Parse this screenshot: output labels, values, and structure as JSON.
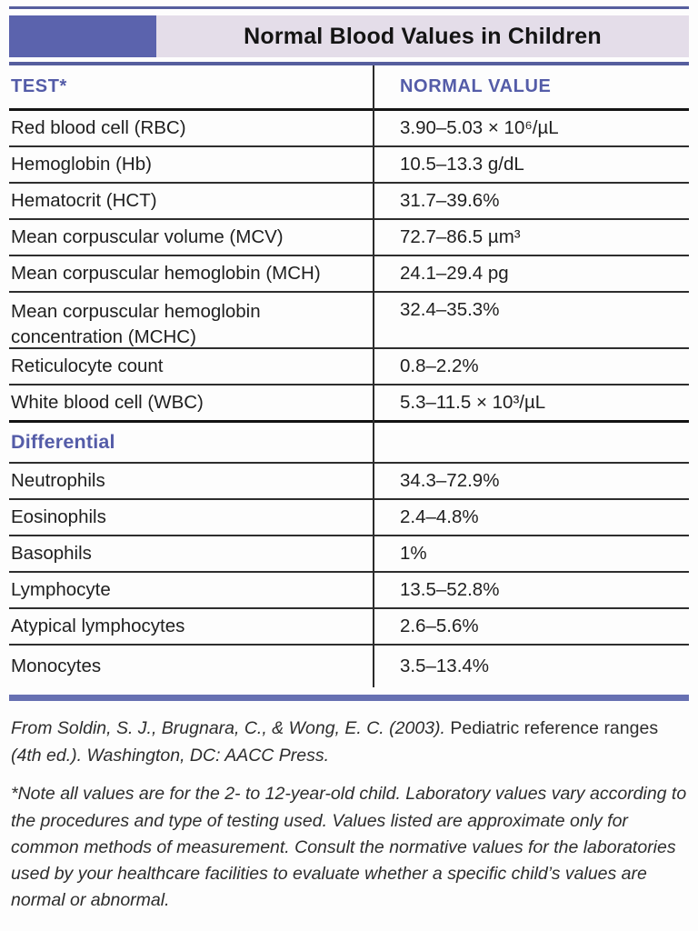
{
  "header": {
    "title": "Normal Blood Values in Children"
  },
  "colors": {
    "accent_purple": "#5b63ad",
    "rule_purple": "#565e9e",
    "bottom_rule_purple": "#6770b2",
    "band_lavender": "#e4dde9",
    "heading_text_purple": "#545ca8",
    "body_text": "#1f1f1f"
  },
  "table": {
    "columns": {
      "test": "TEST*",
      "value": "NORMAL VALUE"
    },
    "rows": [
      {
        "test": "Red blood cell (RBC)",
        "value": "3.90–5.03 × 10⁶/µL"
      },
      {
        "test": "Hemoglobin (Hb)",
        "value": "10.5–13.3 g/dL"
      },
      {
        "test": "Hematocrit (HCT)",
        "value": "31.7–39.6%"
      },
      {
        "test": "Mean corpuscular volume (MCV)",
        "value": "72.7–86.5 µm³"
      },
      {
        "test": "Mean corpuscular hemoglobin (MCH)",
        "value": "24.1–29.4 pg"
      },
      {
        "test": "Mean corpuscular hemoglobin concentration (MCHC)",
        "value": "32.4–35.3%"
      },
      {
        "test": "Reticulocyte count",
        "value": "0.8–2.2%"
      },
      {
        "test": "White blood cell (WBC)",
        "value": "5.3–11.5 × 10³/µL"
      }
    ],
    "section": {
      "label": "Differential"
    },
    "differential_rows": [
      {
        "test": "Neutrophils",
        "value": "34.3–72.9%"
      },
      {
        "test": "Eosinophils",
        "value": "2.4–4.8%"
      },
      {
        "test": "Basophils",
        "value": "1%"
      },
      {
        "test": "Lymphocyte",
        "value": "13.5–52.8%"
      },
      {
        "test": "Atypical lymphocytes",
        "value": "2.6–5.6%"
      },
      {
        "test": "Monocytes",
        "value": "3.5–13.4%"
      }
    ]
  },
  "footer": {
    "citation_prefix": "From Soldin, S. J., Brugnara, C., & Wong, E. C. (2003). ",
    "citation_title": "Pediatric reference ranges",
    "citation_suffix": "(4th ed.). Washington, DC: AACC Press.",
    "note": "*Note all values are for the 2- to 12-year-old child. Laboratory values vary according to the procedures and type of testing used. Values listed are approximate only for common methods of measurement. Consult the normative values for the laboratories used by your healthcare facilities to evaluate whether a specific child’s values are normal or abnormal."
  }
}
